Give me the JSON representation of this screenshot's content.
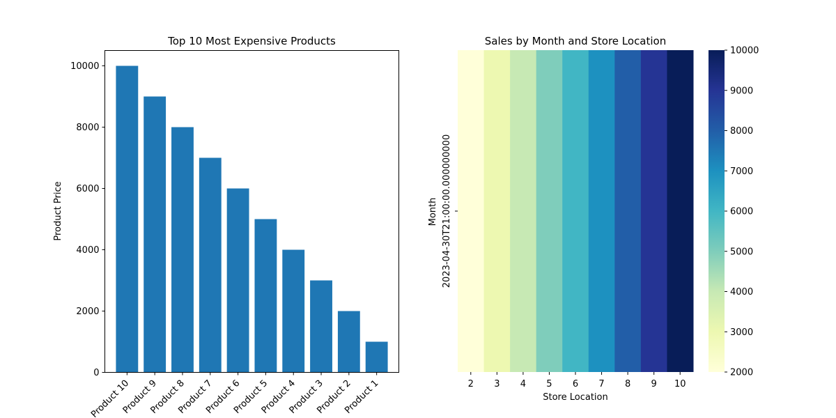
{
  "chart_data": [
    {
      "type": "bar",
      "title": "Top 10 Most Expensive Products",
      "xlabel": "",
      "ylabel": "Product Price",
      "categories": [
        "Product 10",
        "Product 9",
        "Product 8",
        "Product 7",
        "Product 6",
        "Product 5",
        "Product 4",
        "Product 3",
        "Product 2",
        "Product 1"
      ],
      "values": [
        10000,
        9000,
        8000,
        7000,
        6000,
        5000,
        4000,
        3000,
        2000,
        1000
      ],
      "ylim": [
        0,
        10500
      ],
      "yticks": [
        0,
        2000,
        4000,
        6000,
        8000,
        10000
      ],
      "color": "#1f77b4",
      "grid": false
    },
    {
      "type": "heatmap",
      "title": "Sales by Month and Store Location",
      "xlabel": "Store Location",
      "ylabel": "Month",
      "x": [
        "2",
        "3",
        "4",
        "5",
        "6",
        "7",
        "8",
        "9",
        "10"
      ],
      "y": [
        "2023-04-30T21:00:00.000000000"
      ],
      "values": [
        [
          2000,
          3000,
          4000,
          5000,
          6000,
          7000,
          8000,
          9000,
          10000
        ]
      ],
      "colormap": "YlGnBu",
      "colorbar_range": [
        2000,
        10000
      ],
      "colorbar_ticks": [
        2000,
        3000,
        4000,
        5000,
        6000,
        7000,
        8000,
        9000,
        10000
      ]
    }
  ]
}
